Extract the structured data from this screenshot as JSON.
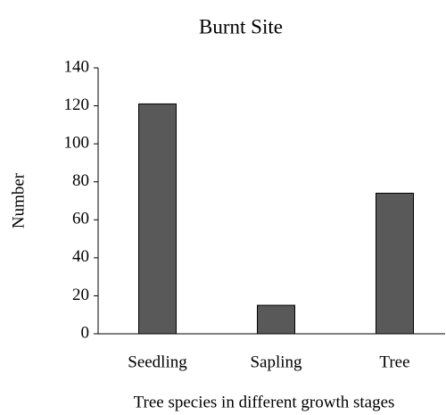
{
  "chart_data": {
    "type": "bar",
    "title": "Burnt Site",
    "x_label": "Tree species in different growth stages",
    "y_label": "Number",
    "categories": [
      "Seedling",
      "Sapling",
      "Tree"
    ],
    "values": [
      121,
      15,
      74
    ],
    "color": "#595959",
    "ylim": [
      0,
      140
    ],
    "yticks": [
      0,
      20,
      40,
      60,
      80,
      100,
      120,
      140
    ],
    "grid": false
  }
}
